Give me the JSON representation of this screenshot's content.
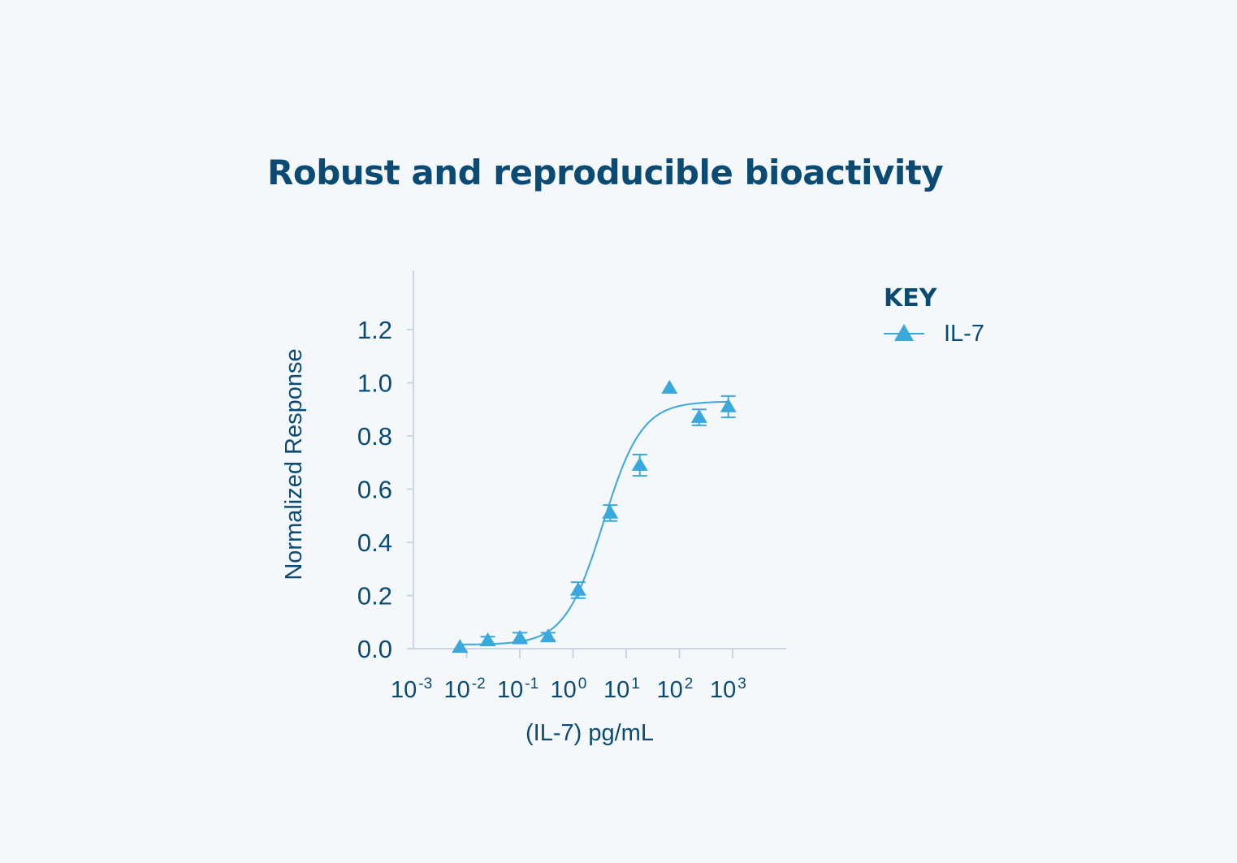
{
  "chart_data": {
    "type": "scatter",
    "title": "Robust and reproducible bioactivity",
    "xlabel": "(IL-7) pg/mL",
    "ylabel": "Normalized Response",
    "xscale": "log",
    "xlim": [
      0.001,
      10000
    ],
    "ylim": [
      0,
      1.2
    ],
    "x_ticks": [
      0.001,
      0.01,
      0.1,
      1,
      10,
      100,
      1000
    ],
    "x_tick_labels": [
      {
        "base": "10",
        "exp": "-3"
      },
      {
        "base": "10",
        "exp": "-2"
      },
      {
        "base": "10",
        "exp": "-1"
      },
      {
        "base": "10",
        "exp": "0"
      },
      {
        "base": "10",
        "exp": "1"
      },
      {
        "base": "10",
        "exp": "2"
      },
      {
        "base": "10",
        "exp": "3"
      }
    ],
    "y_ticks": [
      0.0,
      0.2,
      0.4,
      0.6,
      0.8,
      1.0,
      1.2
    ],
    "y_tick_labels": [
      "0.0",
      "0.2",
      "0.4",
      "0.6",
      "0.8",
      "1.0",
      "1.2"
    ],
    "grid": false,
    "legend": {
      "title": "KEY",
      "position": "right"
    },
    "series": [
      {
        "name": "IL-7",
        "color": "#3aa8dc",
        "marker": "triangle",
        "points": [
          {
            "x": 0.0075,
            "y": 0.005,
            "err": 0.0
          },
          {
            "x": 0.025,
            "y": 0.03,
            "err": 0.015
          },
          {
            "x": 0.1,
            "y": 0.04,
            "err": 0.02
          },
          {
            "x": 0.34,
            "y": 0.045,
            "err": 0.015
          },
          {
            "x": 1.25,
            "y": 0.22,
            "err": 0.03
          },
          {
            "x": 5.0,
            "y": 0.51,
            "err": 0.03
          },
          {
            "x": 18,
            "y": 0.69,
            "err": 0.04
          },
          {
            "x": 65,
            "y": 0.98,
            "err": 0.0
          },
          {
            "x": 235,
            "y": 0.87,
            "err": 0.03
          },
          {
            "x": 830,
            "y": 0.91,
            "err": 0.04
          }
        ],
        "fit": {
          "model": "4PL",
          "bottom": 0.015,
          "top": 0.93,
          "ec50": 3.7,
          "hill": 1.2,
          "x_range": [
            0.0075,
            830
          ]
        }
      }
    ]
  }
}
